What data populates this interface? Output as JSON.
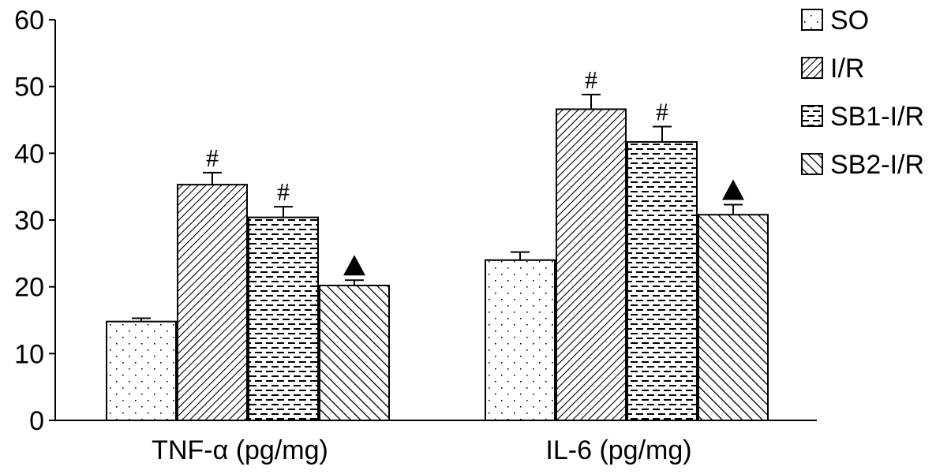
{
  "chart_data": {
    "type": "bar",
    "categories": [
      "TNF-α (pg/mg)",
      "IL-6 (pg/mg)"
    ],
    "series": [
      {
        "name": "SO",
        "values": [
          14.8,
          24.0
        ],
        "errors": [
          0.5,
          1.2
        ],
        "pattern": "dots",
        "annotations": [
          "",
          ""
        ]
      },
      {
        "name": "I/R",
        "values": [
          35.3,
          46.6
        ],
        "errors": [
          1.8,
          2.2
        ],
        "pattern": "diag-dense",
        "annotations": [
          "#",
          "#"
        ]
      },
      {
        "name": "SB1-I/R",
        "values": [
          30.4,
          41.7
        ],
        "errors": [
          1.6,
          2.3
        ],
        "pattern": "dashes",
        "annotations": [
          "#",
          "#"
        ]
      },
      {
        "name": "SB2-I/R",
        "values": [
          20.2,
          30.8
        ],
        "errors": [
          0.8,
          1.5
        ],
        "pattern": "diag-wide",
        "annotations": [
          "triangle",
          "triangle"
        ]
      }
    ],
    "ylim": [
      0,
      60
    ],
    "yticks": [
      "0",
      "10",
      "20",
      "30",
      "40",
      "50",
      "60"
    ],
    "ytick_values": [
      0,
      10,
      20,
      30,
      40,
      50,
      60
    ],
    "xlabel": "",
    "ylabel": "",
    "title": "",
    "grid": false,
    "legend": "top-right",
    "colors": {
      "stroke": "#000000",
      "fill": "#ffffff"
    }
  }
}
